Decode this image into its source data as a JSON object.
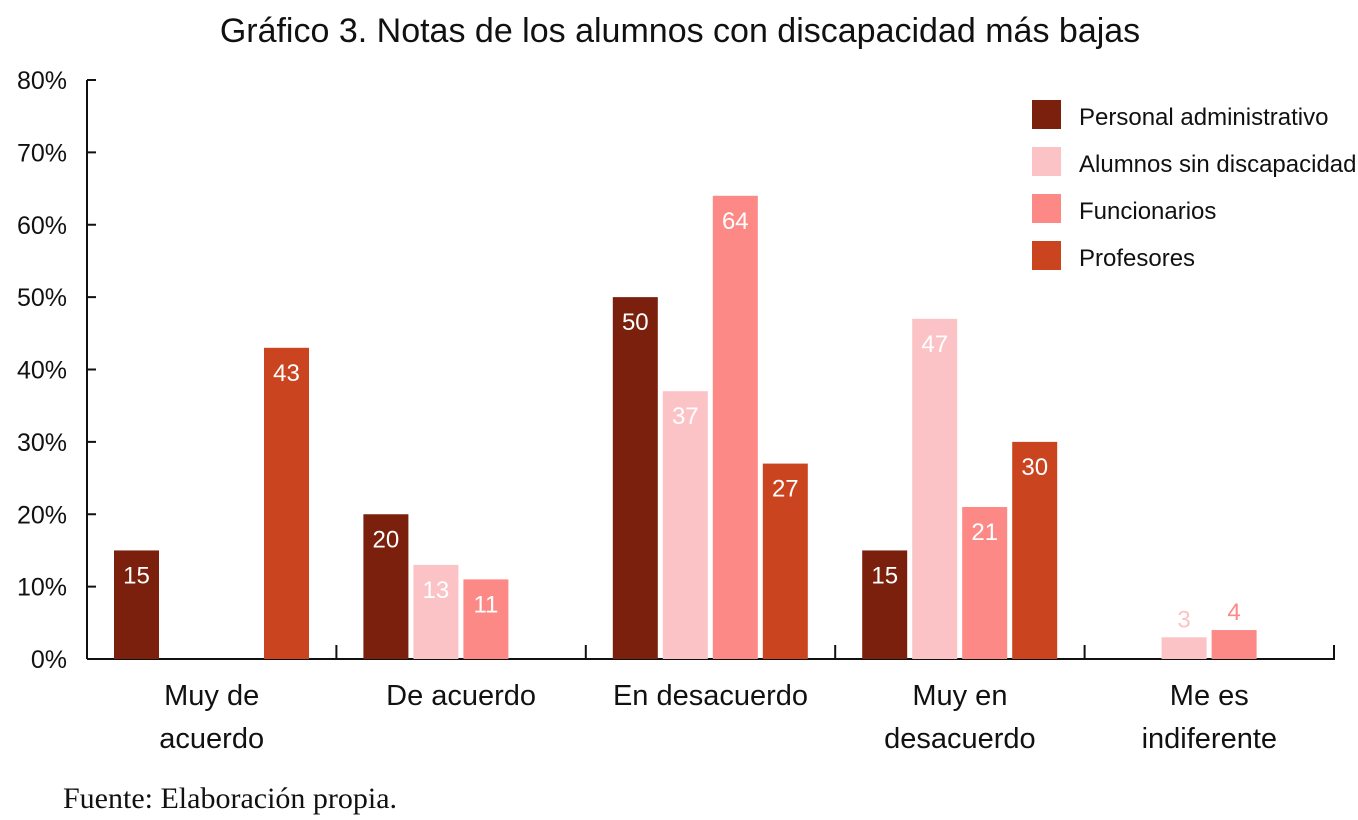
{
  "chart_data": {
    "type": "bar",
    "title": "Gráfico 3. Notas de los alumnos con discapacidad más bajas",
    "categories": [
      [
        "Muy de",
        "acuerdo"
      ],
      [
        "De acuerdo"
      ],
      [
        "En desacuerdo"
      ],
      [
        "Muy en",
        "desacuerdo"
      ],
      [
        "Me es",
        "indiferente"
      ]
    ],
    "series": [
      {
        "name": "Personal administrativo",
        "color": "#7A200C",
        "values": [
          15,
          20,
          50,
          15,
          null
        ]
      },
      {
        "name": "Alumnos sin discapacidad",
        "color": "#FBC3C6",
        "values": [
          null,
          13,
          37,
          47,
          3
        ]
      },
      {
        "name": "Funcionarios",
        "color": "#FC8986",
        "values": [
          null,
          11,
          64,
          21,
          4
        ]
      },
      {
        "name": "Profesores",
        "color": "#CB4420",
        "values": [
          43,
          null,
          27,
          30,
          null
        ]
      }
    ],
    "ylim": [
      0,
      80
    ],
    "yticks": [
      "0%",
      "10%",
      "20%",
      "30%",
      "40%",
      "50%",
      "60%",
      "70%",
      "80%"
    ],
    "grid": false,
    "legend_position": "top-right",
    "source": "Fuente: Elaboración propia."
  }
}
